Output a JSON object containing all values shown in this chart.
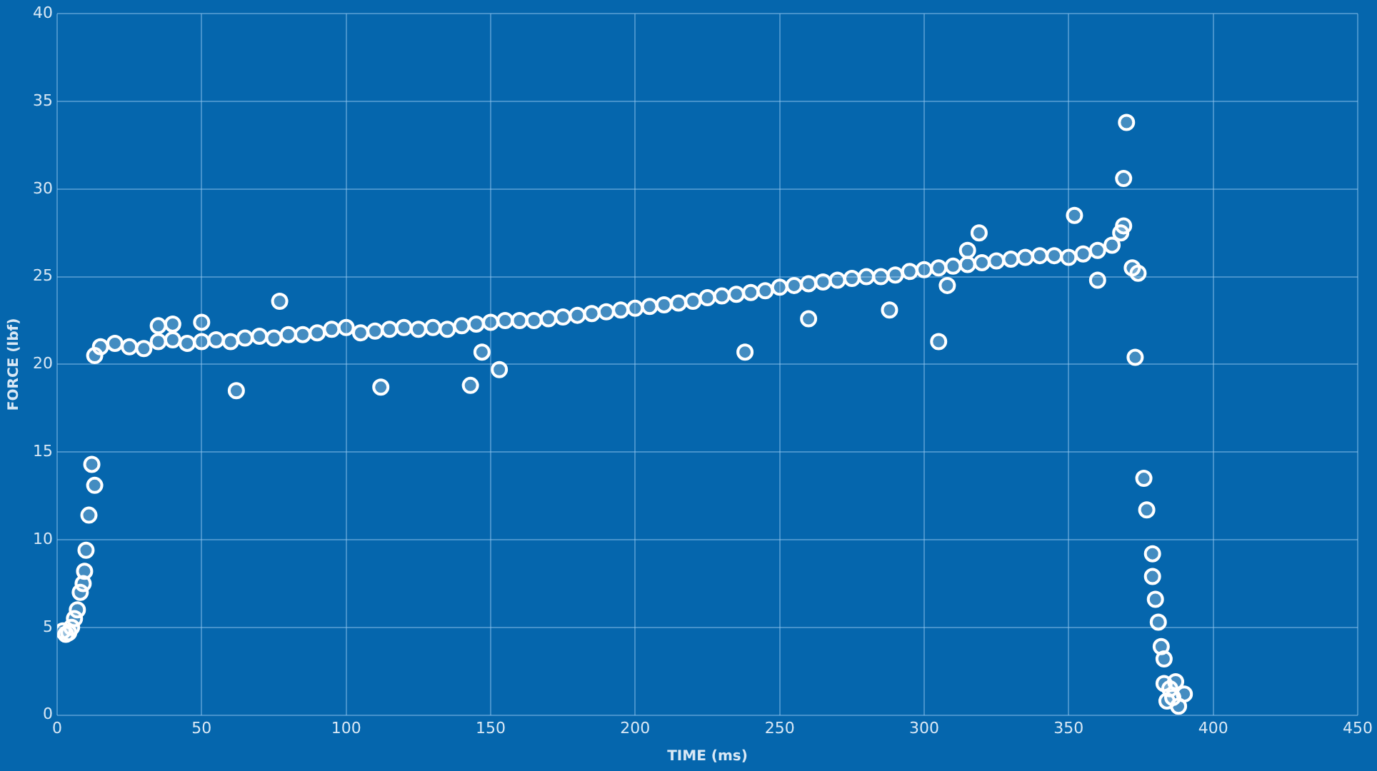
{
  "chart_data": {
    "type": "scatter",
    "xlabel": "TIME (ms)",
    "ylabel": "FORCE (lbf)",
    "xlim": [
      0,
      450
    ],
    "ylim": [
      0,
      40
    ],
    "xticks": [
      0,
      50,
      100,
      150,
      200,
      250,
      300,
      350,
      400,
      450
    ],
    "yticks": [
      0,
      5,
      10,
      15,
      20,
      25,
      30,
      35,
      40
    ],
    "grid": true,
    "marker": "circle",
    "legend": false,
    "series": [
      {
        "color": "#ffffff",
        "x": [
          2,
          3,
          4,
          5,
          6,
          7,
          8,
          9,
          9.5,
          10,
          11,
          12,
          13,
          13,
          15,
          20,
          25,
          30,
          35,
          40,
          45,
          50,
          55,
          60,
          65,
          70,
          75,
          80,
          85,
          90,
          95,
          100,
          105,
          110,
          115,
          120,
          125,
          130,
          135,
          140,
          145,
          150,
          155,
          160,
          165,
          170,
          175,
          180,
          185,
          190,
          195,
          200,
          205,
          210,
          215,
          220,
          225,
          230,
          235,
          240,
          245,
          250,
          255,
          260,
          265,
          270,
          275,
          280,
          285,
          290,
          295,
          300,
          305,
          310,
          315,
          320,
          325,
          330,
          335,
          340,
          345,
          350,
          355,
          360,
          365,
          368,
          369,
          35,
          40,
          50,
          62,
          77,
          112,
          143,
          147,
          153,
          238,
          260,
          288,
          305,
          308,
          315,
          319,
          352,
          360,
          370,
          369,
          372,
          374,
          373,
          376,
          377,
          379,
          379,
          380,
          381,
          382,
          383,
          383,
          385,
          384,
          387,
          388,
          390,
          386
        ],
        "values": [
          4.8,
          4.6,
          4.7,
          5.0,
          5.5,
          6.0,
          7.0,
          7.5,
          8.2,
          9.4,
          11.4,
          14.3,
          13.1,
          20.5,
          21.0,
          21.2,
          21.0,
          20.9,
          21.3,
          21.4,
          21.2,
          21.3,
          21.4,
          21.3,
          21.5,
          21.6,
          21.5,
          21.7,
          21.7,
          21.8,
          22.0,
          22.1,
          21.8,
          21.9,
          22.0,
          22.1,
          22.0,
          22.1,
          22.0,
          22.2,
          22.3,
          22.4,
          22.5,
          22.5,
          22.5,
          22.6,
          22.7,
          22.8,
          22.9,
          23.0,
          23.1,
          23.2,
          23.3,
          23.4,
          23.5,
          23.6,
          23.8,
          23.9,
          24.0,
          24.1,
          24.2,
          24.4,
          24.5,
          24.6,
          24.7,
          24.8,
          24.9,
          25.0,
          25.0,
          25.1,
          25.3,
          25.4,
          25.5,
          25.6,
          25.7,
          25.8,
          25.9,
          26.0,
          26.1,
          26.2,
          26.2,
          26.1,
          26.3,
          26.5,
          26.8,
          27.5,
          27.9,
          22.2,
          22.3,
          22.4,
          18.5,
          23.6,
          18.7,
          18.8,
          20.7,
          19.7,
          20.7,
          22.6,
          23.1,
          21.3,
          24.5,
          26.5,
          27.5,
          28.5,
          24.8,
          33.8,
          30.6,
          25.5,
          25.2,
          20.4,
          13.5,
          11.7,
          9.2,
          7.9,
          6.6,
          5.3,
          3.9,
          3.2,
          1.8,
          1.5,
          0.8,
          1.9,
          0.5,
          1.2,
          1.0
        ]
      }
    ]
  }
}
